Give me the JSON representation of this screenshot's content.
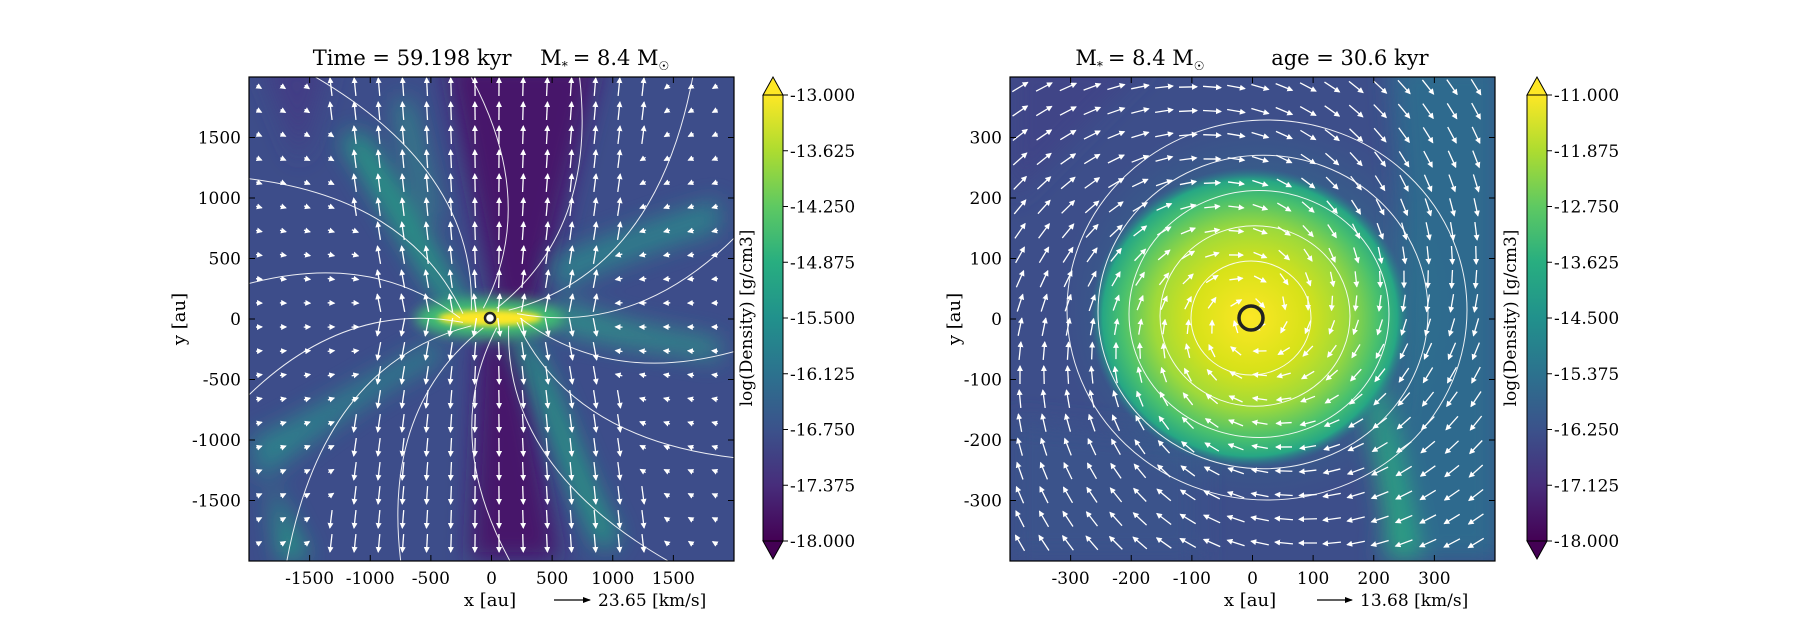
{
  "chart_data": [
    {
      "type": "heatmap",
      "title_left": "Time = 59.198 kyr",
      "title_right": "M",
      "title_sub": "*",
      "title_eq": "= 8.4 M",
      "title_sun": "☉",
      "xlabel": "x [au]",
      "ylabel": "y [au]",
      "xlim": [
        -2000,
        2000
      ],
      "ylim": [
        -2000,
        2000
      ],
      "xticks": [
        -1500,
        -1000,
        -500,
        0,
        500,
        1000,
        1500
      ],
      "yticks": [
        -1500,
        -1000,
        -500,
        0,
        500,
        1000,
        1500
      ],
      "arrow_label": "23.65 [km/s]",
      "colorbar": {
        "label": "log(Density) [g/cm3]",
        "min": -18.0,
        "max": -13.0,
        "ticks": [
          "-13.000",
          "-13.625",
          "-14.250",
          "-14.875",
          "-15.500",
          "-16.125",
          "-16.750",
          "-17.375",
          "-18.000"
        ]
      },
      "colormap": "viridis",
      "structure": "bipolar-outflow-with-disk"
    },
    {
      "type": "heatmap",
      "title_left": "M",
      "title_sub": "*",
      "title_eq": "= 8.4 M",
      "title_sun": "☉",
      "title_right": "age = 30.6 kyr",
      "xlabel": "x [au]",
      "ylabel": "y [au]",
      "xlim": [
        -400,
        400
      ],
      "ylim": [
        -400,
        400
      ],
      "xticks": [
        -300,
        -200,
        -100,
        0,
        100,
        200,
        300
      ],
      "yticks": [
        -300,
        -200,
        -100,
        0,
        100,
        200,
        300
      ],
      "arrow_label": "13.68 [km/s]",
      "colorbar": {
        "label": "log(Density) [g/cm3]",
        "min": -18.0,
        "max": -11.0,
        "ticks": [
          "-11.000",
          "-11.875",
          "-12.750",
          "-13.625",
          "-14.500",
          "-15.375",
          "-16.250",
          "-17.125",
          "-18.000"
        ]
      },
      "colormap": "viridis",
      "structure": "rotating-disk"
    }
  ]
}
